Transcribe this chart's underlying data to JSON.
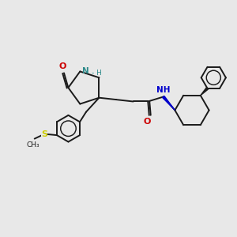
{
  "bg_color": "#e8e8e8",
  "bond_color": "#1a1a1a",
  "N_color": "#2e8b8b",
  "O_color": "#cc0000",
  "S_color": "#cccc00",
  "NH_color": "#0000cc",
  "figsize": [
    3.0,
    3.0
  ],
  "dpi": 100,
  "xlim": [
    0,
    10
  ],
  "ylim": [
    0,
    10
  ]
}
